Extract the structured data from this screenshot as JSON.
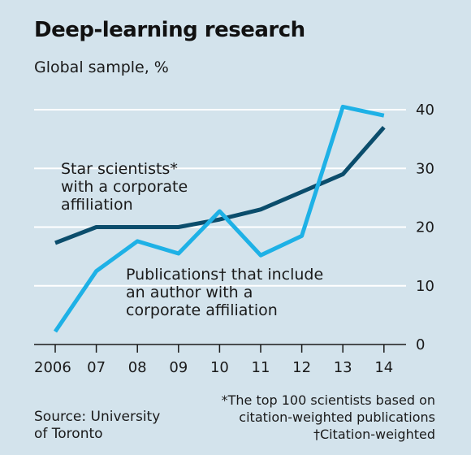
{
  "header": {
    "title": "Deep-learning research",
    "subtitle": "Global sample, %"
  },
  "footer": {
    "source_lines": [
      "Source: University",
      "of Toronto"
    ],
    "note_lines": [
      "*The top 100 scientists based on",
      "citation-weighted publications",
      "†Citation-weighted"
    ]
  },
  "colors": {
    "background": "#d3e3ec",
    "gridline": "#ffffff",
    "star_scientists": "#0b4d6c",
    "publications": "#1eb1e6"
  },
  "chart_data": {
    "type": "line",
    "title": "Deep-learning research",
    "subtitle": "Global sample, %",
    "x": [
      "2006",
      "07",
      "08",
      "09",
      "10",
      "11",
      "12",
      "13",
      "14"
    ],
    "ylim": [
      0,
      40
    ],
    "yticks": [
      0,
      10,
      20,
      30,
      40
    ],
    "y_axis_side": "right",
    "grid": true,
    "series": [
      {
        "key": "star_scientists",
        "label_lines": [
          "Star scientists*",
          "with a corporate",
          "affiliation"
        ],
        "values": [
          17.3,
          20,
          20,
          20,
          21.3,
          23,
          26,
          29,
          37
        ]
      },
      {
        "key": "publications",
        "label_lines": [
          "Publications† that include",
          "an author with a",
          "corporate affiliation"
        ],
        "values": [
          2.2,
          12.5,
          17.6,
          15.5,
          22.7,
          15.2,
          18.5,
          40.5,
          39
        ]
      }
    ]
  }
}
